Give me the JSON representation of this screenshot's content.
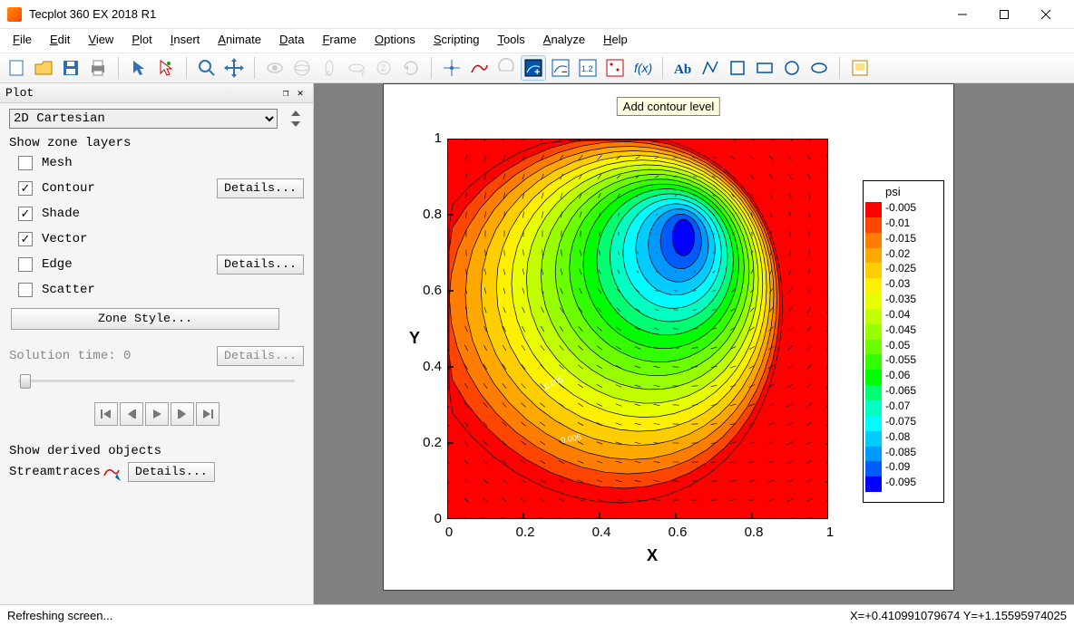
{
  "window": {
    "title": "Tecplot 360 EX 2018 R1"
  },
  "menu": [
    {
      "label": "File",
      "ul": "F"
    },
    {
      "label": "Edit",
      "ul": "E"
    },
    {
      "label": "View",
      "ul": "V"
    },
    {
      "label": "Plot",
      "ul": "P"
    },
    {
      "label": "Insert",
      "ul": "I"
    },
    {
      "label": "Animate",
      "ul": "A"
    },
    {
      "label": "Data",
      "ul": "D"
    },
    {
      "label": "Frame",
      "ul": "F"
    },
    {
      "label": "Options",
      "ul": "O"
    },
    {
      "label": "Scripting",
      "ul": "S"
    },
    {
      "label": "Tools",
      "ul": "T"
    },
    {
      "label": "Analyze",
      "ul": "A"
    },
    {
      "label": "Help",
      "ul": "H"
    }
  ],
  "toolbar_groups": [
    [
      "new-layout",
      "open-layout",
      "save-layout",
      "print"
    ],
    [
      "selector",
      "adjustor"
    ],
    [
      "zoom",
      "translate"
    ],
    [
      "rotate",
      "rotate-spherical",
      "rotate-x",
      "rotate-y",
      "rotate-z",
      "rotate-twist"
    ],
    [
      "probe",
      "add-streamtrace",
      "slice",
      "add-contour-level",
      "remove-contour-level",
      "adjust-contour",
      "extract-points",
      "fx"
    ],
    [
      "add-text",
      "add-polyline",
      "add-square",
      "add-rectangle",
      "add-circle",
      "add-ellipse"
    ],
    [
      "create-frame"
    ]
  ],
  "plot_panel": {
    "title": "Plot",
    "plot_type": "2D Cartesian",
    "layers_label": "Show zone layers",
    "layers": [
      {
        "name": "Mesh",
        "checked": false,
        "details": false
      },
      {
        "name": "Contour",
        "checked": true,
        "details": true
      },
      {
        "name": "Shade",
        "checked": true,
        "details": false
      },
      {
        "name": "Vector",
        "checked": true,
        "details": false
      },
      {
        "name": "Edge",
        "checked": false,
        "details": true
      },
      {
        "name": "Scatter",
        "checked": false,
        "details": false
      }
    ],
    "zone_style": "Zone Style...",
    "details_btn": "Details...",
    "solution_time_label": "Solution time: 0",
    "derived_label": "Show derived objects",
    "streamtraces": {
      "name": "Streamtraces",
      "checked": false
    }
  },
  "tooltip": "Add contour level",
  "chart": {
    "type": "contour",
    "xlabel": "X",
    "ylabel": "Y",
    "xlim": [
      0,
      1
    ],
    "ylim": [
      0,
      1
    ],
    "xticks": [
      0,
      0.2,
      0.4,
      0.6,
      0.8,
      1
    ],
    "yticks": [
      0,
      0.2,
      0.4,
      0.6,
      0.8,
      1
    ],
    "tick_labels_x": [
      "0",
      "0.2",
      "0.4",
      "0.6",
      "0.8",
      "1"
    ],
    "tick_labels_y": [
      "0",
      "0.2",
      "0.4",
      "0.6",
      "0.8",
      "1"
    ],
    "vortex_center": [
      0.62,
      0.74
    ],
    "contour_levels": 19,
    "background_color": "#ff0000",
    "label_fontsize": 18,
    "tick_fontsize": 15,
    "axis_color": "#000000",
    "inline_labels": [
      "0.005",
      "0.005"
    ]
  },
  "legend": {
    "title": "psi",
    "labels": [
      "-0.005",
      "-0.01",
      "-0.015",
      "-0.02",
      "-0.025",
      "-0.03",
      "-0.035",
      "-0.04",
      "-0.045",
      "-0.05",
      "-0.055",
      "-0.06",
      "-0.065",
      "-0.07",
      "-0.075",
      "-0.08",
      "-0.085",
      "-0.09",
      "-0.095"
    ],
    "colors": [
      "#ff0000",
      "#ff4600",
      "#ff7d00",
      "#ffa800",
      "#ffce00",
      "#fff000",
      "#e8ff00",
      "#c1ff00",
      "#98ff00",
      "#6bff00",
      "#34ff00",
      "#00ff00",
      "#00ff71",
      "#00ffc0",
      "#00fcff",
      "#00ccff",
      "#0099ff",
      "#005bff",
      "#0000ff"
    ]
  },
  "status": {
    "left": "Refreshing screen...",
    "right": "X=+0.410991079674  Y=+1.15595974025"
  }
}
